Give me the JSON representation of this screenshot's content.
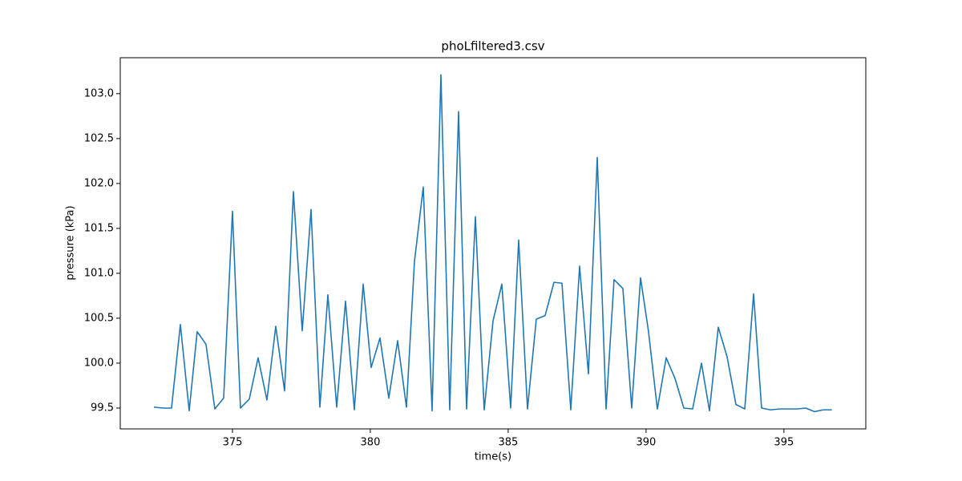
{
  "chart_data": {
    "type": "line",
    "title": "phoLfiltered3.csv",
    "x_label": "time(s)",
    "y_label": "pressure (kPa)",
    "x": [
      372.15,
      372.47,
      372.79,
      373.11,
      373.43,
      373.72,
      374.04,
      374.36,
      374.68,
      375.0,
      375.29,
      375.61,
      375.93,
      376.25,
      376.57,
      376.89,
      377.21,
      377.53,
      377.85,
      378.17,
      378.46,
      378.78,
      379.1,
      379.42,
      379.74,
      380.03,
      380.35,
      380.67,
      380.99,
      381.31,
      381.6,
      381.92,
      382.24,
      382.56,
      382.88,
      383.2,
      383.49,
      383.81,
      384.13,
      384.45,
      384.77,
      385.09,
      385.38,
      385.7,
      386.02,
      386.34,
      386.66,
      386.95,
      387.27,
      387.59,
      387.91,
      388.23,
      388.55,
      388.84,
      389.16,
      389.48,
      389.8,
      390.09,
      390.41,
      390.73,
      391.05,
      391.37,
      391.69,
      392.01,
      392.3,
      392.62,
      392.94,
      393.26,
      393.58,
      393.9,
      394.19,
      394.51,
      394.83,
      395.15,
      395.47,
      395.79,
      396.11,
      396.42,
      396.74
    ],
    "series": [
      {
        "color": "#1f77b4",
        "values": [
          99.51,
          99.5,
          99.5,
          100.43,
          99.47,
          100.35,
          100.21,
          99.49,
          99.61,
          101.69,
          99.5,
          99.6,
          100.06,
          99.59,
          100.41,
          99.69,
          101.91,
          100.36,
          101.71,
          99.51,
          100.76,
          99.51,
          100.69,
          99.48,
          100.88,
          99.95,
          100.28,
          99.61,
          100.25,
          99.51,
          101.13,
          101.96,
          99.47,
          103.21,
          99.48,
          102.8,
          99.49,
          101.63,
          99.48,
          100.47,
          100.88,
          99.5,
          101.37,
          99.49,
          100.49,
          100.53,
          100.9,
          100.89,
          99.48,
          101.08,
          99.88,
          102.29,
          99.49,
          100.93,
          100.83,
          99.5,
          100.95,
          100.35,
          99.49,
          100.06,
          99.83,
          99.5,
          99.49,
          100.0,
          99.47,
          100.4,
          100.07,
          99.54,
          99.49,
          100.77,
          99.5,
          99.48,
          99.49,
          99.49,
          99.49,
          99.5,
          99.46,
          99.48,
          99.48
        ]
      }
    ],
    "xlim": [
      370.93,
      397.97
    ],
    "ylim": [
      99.268,
      103.4
    ],
    "xticks": [
      375,
      380,
      385,
      390,
      395
    ],
    "yticks": [
      99.5,
      {
        "value": 100,
        "label": "100.0"
      },
      100.5,
      {
        "value": 101,
        "label": "101.0"
      },
      101.5,
      {
        "value": 102,
        "label": "102.0"
      },
      102.5,
      {
        "value": 103,
        "label": "103.0"
      }
    ]
  }
}
